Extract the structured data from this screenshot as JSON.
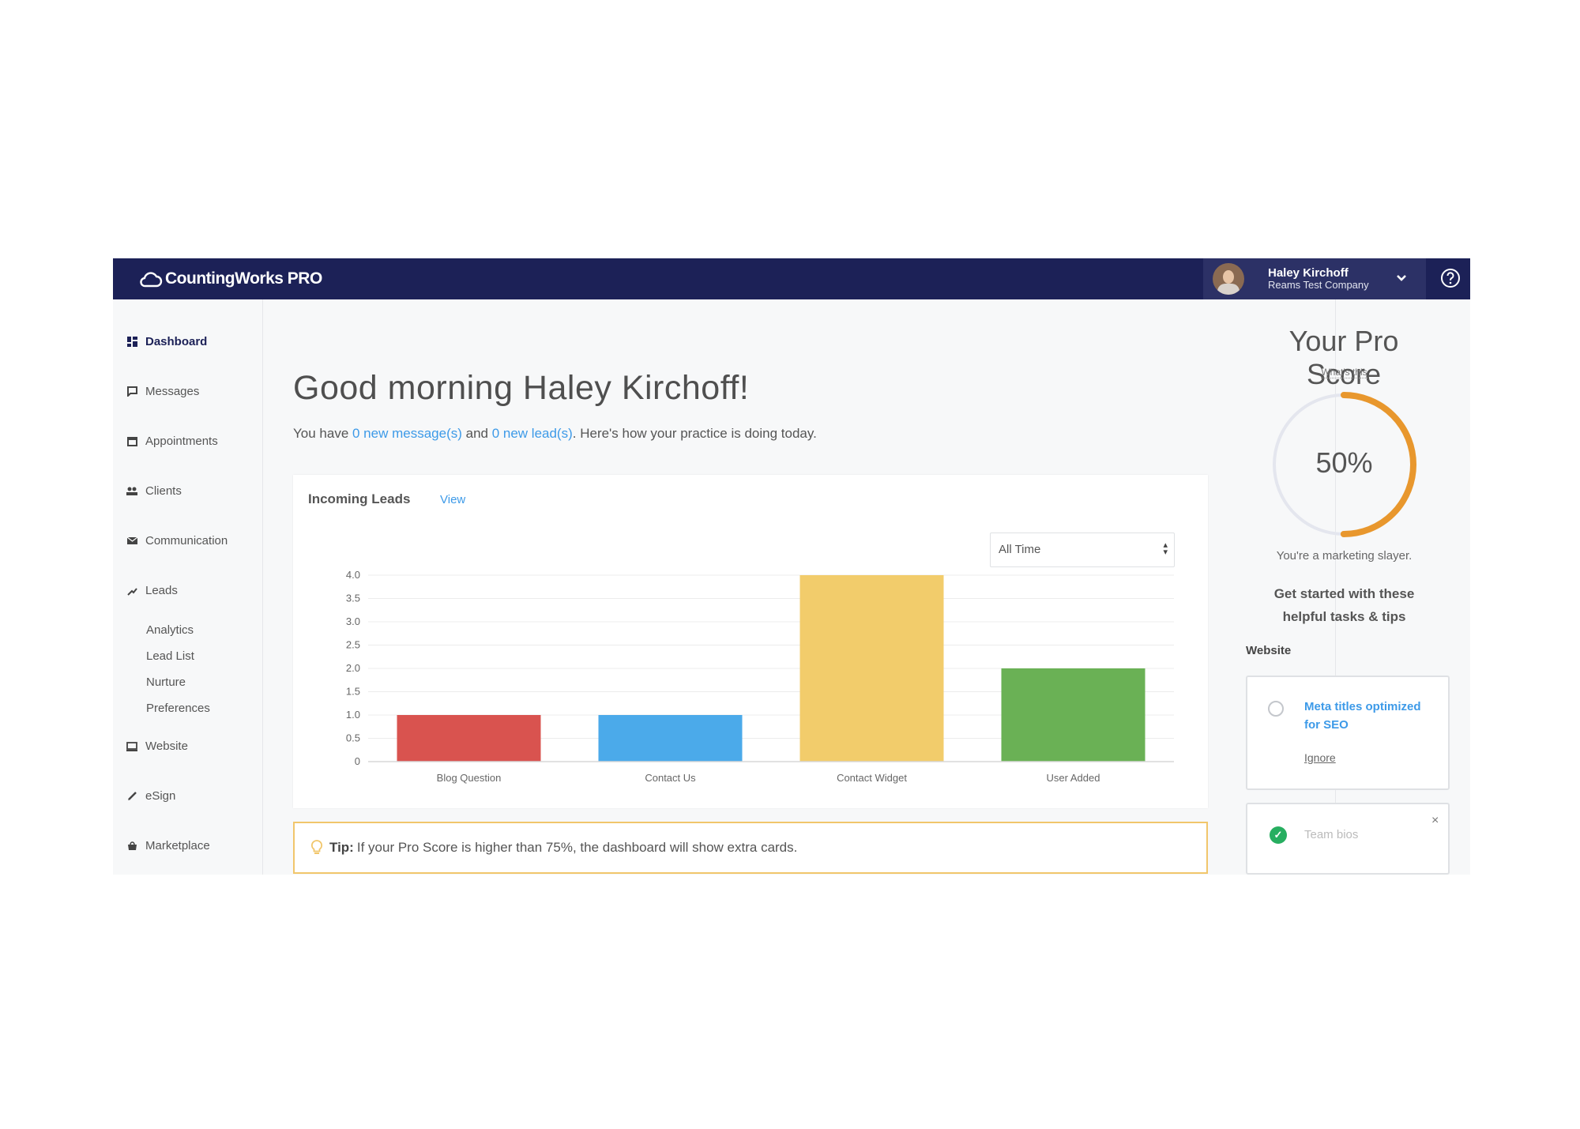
{
  "app": {
    "brand": "CountingWorks PRO"
  },
  "user": {
    "name": "Haley Kirchoff",
    "company": "Reams Test Company"
  },
  "sidebar": {
    "items": [
      {
        "label": "Dashboard",
        "icon": "dashboard-icon",
        "active": true
      },
      {
        "label": "Messages",
        "icon": "messages-icon"
      },
      {
        "label": "Appointments",
        "icon": "calendar-icon"
      },
      {
        "label": "Clients",
        "icon": "clients-icon"
      },
      {
        "label": "Communication",
        "icon": "communication-icon"
      },
      {
        "label": "Leads",
        "icon": "leads-icon"
      },
      {
        "label": "Website",
        "icon": "website-icon"
      },
      {
        "label": "eSign",
        "icon": "pen-icon"
      },
      {
        "label": "Marketplace",
        "icon": "marketplace-icon"
      }
    ],
    "leads_sub": [
      "Analytics",
      "Lead List",
      "Nurture",
      "Preferences"
    ]
  },
  "main": {
    "greeting": "Good morning Haley Kirchoff!",
    "summary": {
      "prefix": "You have ",
      "messages_link": "0 new message(s)",
      "middle": " and ",
      "leads_link": "0 new lead(s)",
      "suffix": ". Here's how your practice is doing today."
    },
    "card": {
      "title": "Incoming Leads",
      "view_link": "View",
      "range_select": "All Time"
    },
    "tip": {
      "label": "Tip:",
      "text": "If your Pro Score is higher than 75%, the dashboard will show extra cards."
    }
  },
  "chart_data": {
    "type": "bar",
    "categories": [
      "Blog Question",
      "Contact Us",
      "Contact Widget",
      "User Added"
    ],
    "values": [
      1,
      1,
      4,
      2
    ],
    "colors": [
      "#d9534f",
      "#4baaea",
      "#f2cc6b",
      "#6ab155"
    ],
    "yticks": [
      "0",
      "0.5",
      "1.0",
      "1.5",
      "2.0",
      "2.5",
      "3.0",
      "3.5",
      "4.0"
    ],
    "ylim": [
      0,
      4
    ],
    "grid": true
  },
  "pro_score": {
    "title": "Your Pro Score",
    "whats_this": "What's this",
    "value": 50,
    "value_label": "50%",
    "message": "You're a marketing slayer.",
    "tasks_heading_line1": "Get started with these",
    "tasks_heading_line2": "helpful tasks & tips",
    "section": "Website",
    "tasks": [
      {
        "label": "Meta titles optimized for SEO",
        "action": "Ignore",
        "done": false
      },
      {
        "label": "Team bios",
        "done": true
      }
    ],
    "accent_color": "#e8972d"
  }
}
